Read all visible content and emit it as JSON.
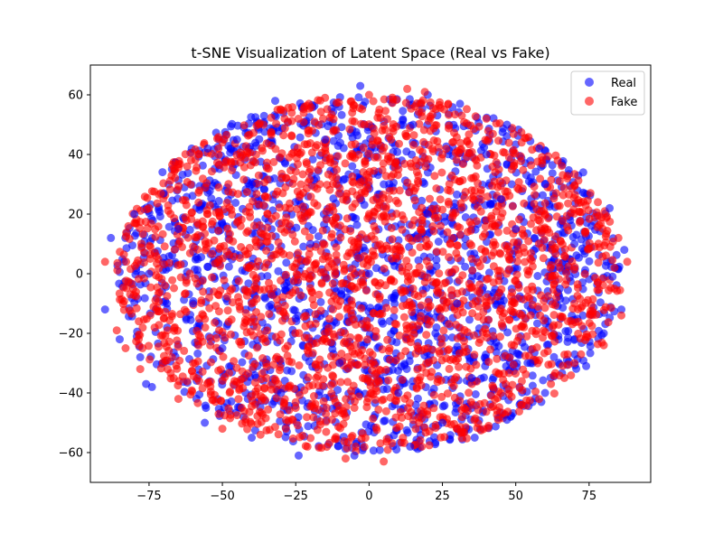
{
  "chart_data": {
    "type": "scatter",
    "title": "t-SNE Visualization of Latent Space (Real vs Fake)",
    "xlabel": "",
    "ylabel": "",
    "xlim": [
      -95,
      96
    ],
    "ylim": [
      -70,
      70
    ],
    "xticks": [
      -75,
      -50,
      -25,
      0,
      25,
      50,
      75
    ],
    "xtick_labels": [
      "−75",
      "−50",
      "−25",
      "0",
      "25",
      "50",
      "75"
    ],
    "yticks": [
      -60,
      -40,
      -20,
      0,
      20,
      40,
      60
    ],
    "ytick_labels": [
      "−60",
      "−40",
      "−20",
      "0",
      "20",
      "40",
      "60"
    ],
    "grid": false,
    "legend": "top-right",
    "series": [
      {
        "name": "Real",
        "color": "#0000ff",
        "alpha": 0.6,
        "points": [
          [
            -3,
            63
          ],
          [
            20,
            60
          ],
          [
            -32,
            58
          ],
          [
            31,
            57
          ],
          [
            47,
            50
          ],
          [
            -55,
            42
          ],
          [
            58,
            42
          ],
          [
            -70,
            27
          ],
          [
            73,
            34
          ],
          [
            -80,
            20
          ],
          [
            82,
            22
          ],
          [
            -88,
            12
          ],
          [
            -90,
            -12
          ],
          [
            -85,
            -22
          ],
          [
            -78,
            -28
          ],
          [
            -76,
            -37
          ],
          [
            -74,
            -38
          ],
          [
            -56,
            -50
          ],
          [
            -40,
            -55
          ],
          [
            -24,
            -61
          ],
          [
            -5,
            -61
          ],
          [
            14,
            -58
          ],
          [
            36,
            -55
          ],
          [
            47,
            -49
          ],
          [
            60,
            -40
          ],
          [
            74,
            -31
          ],
          [
            80,
            -20
          ],
          [
            86,
            -12
          ],
          [
            83,
            -1
          ],
          [
            87,
            8
          ],
          [
            -60,
            -10
          ],
          [
            -20,
            10
          ],
          [
            5,
            30
          ],
          [
            30,
            -10
          ],
          [
            50,
            15
          ],
          [
            -40,
            30
          ],
          [
            10,
            -40
          ],
          [
            -10,
            -30
          ],
          [
            40,
            40
          ],
          [
            -65,
            15
          ],
          [
            65,
            -5
          ],
          [
            -30,
            -40
          ],
          [
            20,
            20
          ],
          [
            0,
            0
          ],
          [
            -50,
            -25
          ],
          [
            55,
            -30
          ],
          [
            -15,
            45
          ],
          [
            35,
            -35
          ],
          [
            70,
            10
          ],
          [
            -75,
            0
          ],
          [
            15,
            50
          ],
          [
            -45,
            45
          ],
          [
            25,
            -50
          ],
          [
            45,
            25
          ],
          [
            -25,
            -15
          ],
          [
            60,
            30
          ]
        ]
      },
      {
        "name": "Fake",
        "color": "#ff0000",
        "alpha": 0.6,
        "points": [
          [
            -90,
            4
          ],
          [
            -86,
            -19
          ],
          [
            -80,
            17
          ],
          [
            -75,
            22
          ],
          [
            -71,
            27
          ],
          [
            -62,
            36
          ],
          [
            -50,
            44
          ],
          [
            -36,
            50
          ],
          [
            -22,
            56
          ],
          [
            -15,
            59
          ],
          [
            0,
            60
          ],
          [
            13,
            62
          ],
          [
            19,
            61
          ],
          [
            27,
            57
          ],
          [
            40,
            52
          ],
          [
            52,
            44
          ],
          [
            65,
            31
          ],
          [
            78,
            24
          ],
          [
            85,
            12
          ],
          [
            88,
            4
          ],
          [
            86,
            -14
          ],
          [
            80,
            -24
          ],
          [
            70,
            -30
          ],
          [
            62,
            -37
          ],
          [
            52,
            -44
          ],
          [
            44,
            -49
          ],
          [
            30,
            -52
          ],
          [
            18,
            -58
          ],
          [
            5,
            -63
          ],
          [
            -8,
            -62
          ],
          [
            -21,
            -58
          ],
          [
            -37,
            -54
          ],
          [
            -50,
            -52
          ],
          [
            -65,
            -42
          ],
          [
            -78,
            -32
          ],
          [
            -83,
            -25
          ],
          [
            -55,
            20
          ],
          [
            -30,
            15
          ],
          [
            10,
            35
          ],
          [
            35,
            5
          ],
          [
            -15,
            -20
          ],
          [
            20,
            -25
          ],
          [
            -40,
            -10
          ],
          [
            55,
            5
          ],
          [
            0,
            20
          ],
          [
            -5,
            -45
          ],
          [
            40,
            -20
          ],
          [
            -60,
            -30
          ],
          [
            25,
            40
          ],
          [
            -20,
            35
          ],
          [
            60,
            20
          ],
          [
            -70,
            -15
          ],
          [
            15,
            -5
          ],
          [
            -35,
            -35
          ],
          [
            45,
            -40
          ],
          [
            70,
            -10
          ]
        ]
      }
    ]
  }
}
